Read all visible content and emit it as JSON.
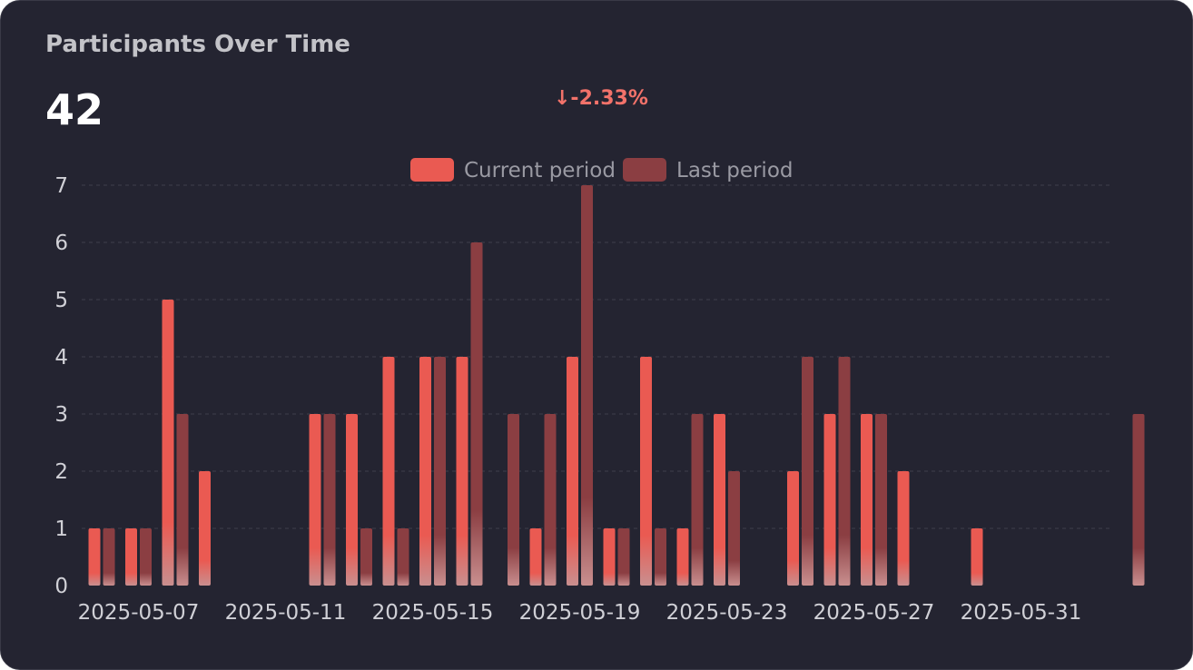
{
  "card": {
    "title": "Participants Over Time",
    "total": "42",
    "delta": "↓-2.33%"
  },
  "colors": {
    "card_bg": "#242431",
    "current": "#ea5a52",
    "last": "#8b3e42",
    "delta": "#f2726a",
    "grid": "#3e3e4c"
  },
  "chart_data": {
    "type": "bar",
    "x": [
      "2025-05-06",
      "2025-05-07",
      "2025-05-08",
      "2025-05-09",
      "2025-05-10",
      "2025-05-11",
      "2025-05-12",
      "2025-05-13",
      "2025-05-14",
      "2025-05-15",
      "2025-05-16",
      "2025-05-17",
      "2025-05-18",
      "2025-05-19",
      "2025-05-20",
      "2025-05-21",
      "2025-05-22",
      "2025-05-23",
      "2025-05-24",
      "2025-05-25",
      "2025-05-26",
      "2025-05-27",
      "2025-05-28",
      "2025-05-29",
      "2025-05-30",
      "2025-05-31",
      "2025-06-01",
      "2025-06-02",
      "2025-06-03"
    ],
    "series": [
      {
        "name": "Current period",
        "values": [
          1,
          1,
          5,
          2,
          0,
          0,
          3,
          3,
          4,
          4,
          4,
          0,
          1,
          4,
          1,
          4,
          1,
          3,
          0,
          2,
          3,
          3,
          2,
          0,
          1,
          0,
          0,
          0,
          0
        ]
      },
      {
        "name": "Last period",
        "values": [
          1,
          1,
          3,
          0,
          0,
          0,
          3,
          1,
          1,
          4,
          6,
          3,
          3,
          7,
          1,
          1,
          3,
          2,
          0,
          4,
          4,
          3,
          0,
          0,
          0,
          0,
          0,
          0,
          3
        ]
      }
    ],
    "xticks": [
      "2025-05-07",
      "2025-05-11",
      "2025-05-15",
      "2025-05-19",
      "2025-05-23",
      "2025-05-27",
      "2025-05-31"
    ],
    "yticks": [
      0,
      1,
      2,
      3,
      4,
      5,
      6,
      7
    ],
    "ylim": [
      0,
      7
    ],
    "grid": true,
    "legend": "top-center"
  }
}
